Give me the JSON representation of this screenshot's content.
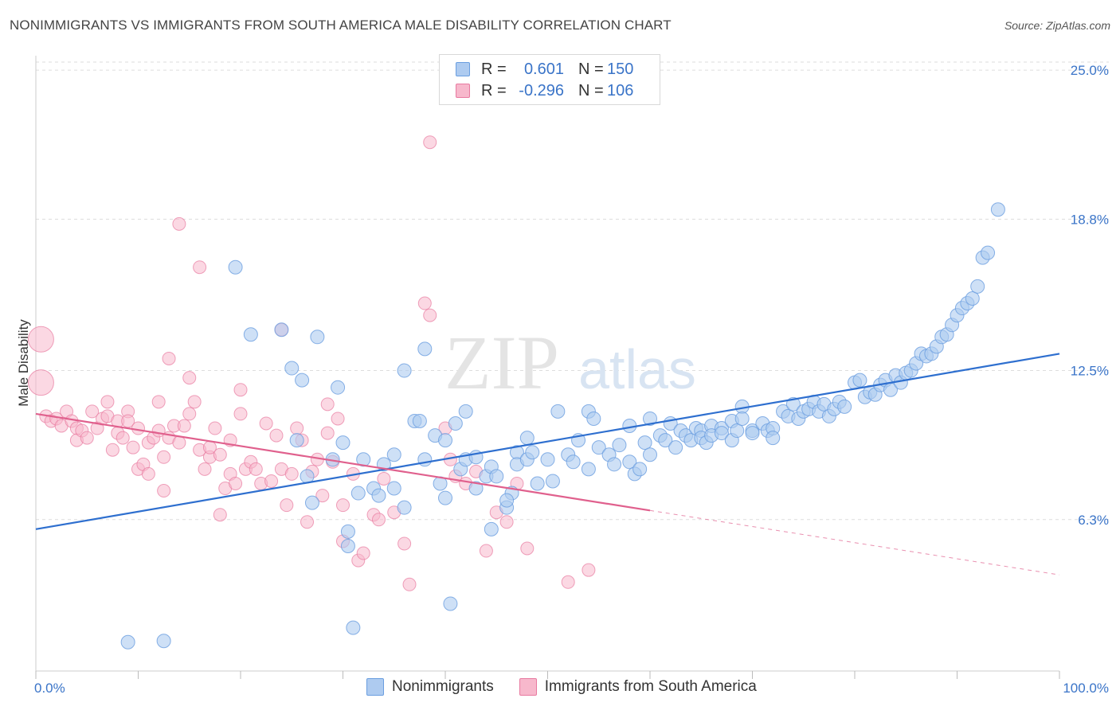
{
  "header": {
    "title": "NONIMMIGRANTS VS IMMIGRANTS FROM SOUTH AMERICA MALE DISABILITY CORRELATION CHART",
    "source": "Source: ZipAtlas.com"
  },
  "watermark": {
    "zip": "ZIP",
    "atlas": "atlas"
  },
  "legend": {
    "r_label": "R =",
    "n_label": "N =",
    "series": [
      {
        "name": "Nonimmigrants",
        "r": "0.601",
        "n": "150",
        "color": "#6a9ee0",
        "fill": "#aecbf0"
      },
      {
        "name": "Immigrants from South America",
        "r": "-0.296",
        "n": "106",
        "color": "#e87aa0",
        "fill": "#f7b8cc"
      }
    ]
  },
  "colors": {
    "blue_line": "#2e6fcf",
    "pink_line": "#e0608d",
    "value_text": "#3a74c8",
    "grid": "#dddddd"
  },
  "chart_data": {
    "type": "scatter",
    "title": "NONIMMIGRANTS VS IMMIGRANTS FROM SOUTH AMERICA MALE DISABILITY CORRELATION CHART",
    "xlabel": "",
    "ylabel": "Male Disability",
    "xlim": [
      0,
      100
    ],
    "ylim": [
      0,
      25.6
    ],
    "x_tick_labels": [
      "0.0%",
      "100.0%"
    ],
    "y_ticks": [
      6.3,
      12.5,
      18.8,
      25.0
    ],
    "y_tick_labels": [
      "6.3%",
      "12.5%",
      "18.8%",
      "25.0%"
    ],
    "grid": true,
    "legend_position": "top-center",
    "series": [
      {
        "name": "Nonimmigrants",
        "trend": {
          "x": [
            0,
            100
          ],
          "y": [
            5.9,
            13.2
          ]
        },
        "points": [
          [
            9,
            1.2
          ],
          [
            12.5,
            1.25
          ],
          [
            19.5,
            16.8
          ],
          [
            21,
            14.0
          ],
          [
            24,
            14.2
          ],
          [
            25,
            12.6
          ],
          [
            25.5,
            9.6
          ],
          [
            26,
            12.1
          ],
          [
            26.5,
            8.1
          ],
          [
            27,
            7.0
          ],
          [
            27.5,
            13.9
          ],
          [
            29,
            8.8
          ],
          [
            29.5,
            11.8
          ],
          [
            30,
            9.5
          ],
          [
            30.5,
            5.8
          ],
          [
            30.5,
            5.2
          ],
          [
            31,
            1.8
          ],
          [
            31.5,
            7.4
          ],
          [
            32,
            8.8
          ],
          [
            33,
            7.6
          ],
          [
            33.5,
            7.3
          ],
          [
            34,
            8.6
          ],
          [
            35,
            7.6
          ],
          [
            35,
            9.0
          ],
          [
            36,
            6.8
          ],
          [
            36,
            12.5
          ],
          [
            37,
            10.4
          ],
          [
            37.5,
            10.4
          ],
          [
            38,
            13.4
          ],
          [
            38,
            8.8
          ],
          [
            39,
            9.8
          ],
          [
            39.5,
            7.8
          ],
          [
            40,
            9.6
          ],
          [
            40,
            7.2
          ],
          [
            40.5,
            2.8
          ],
          [
            41,
            10.3
          ],
          [
            41.5,
            8.4
          ],
          [
            42,
            8.8
          ],
          [
            42,
            10.8
          ],
          [
            43,
            8.9
          ],
          [
            43,
            7.6
          ],
          [
            44,
            8.1
          ],
          [
            44.5,
            8.5
          ],
          [
            44.5,
            5.9
          ],
          [
            45,
            8.1
          ],
          [
            46,
            6.8
          ],
          [
            46.5,
            7.4
          ],
          [
            46,
            7.1
          ],
          [
            47,
            9.1
          ],
          [
            47,
            8.6
          ],
          [
            48,
            9.7
          ],
          [
            48,
            8.8
          ],
          [
            48.5,
            9.1
          ],
          [
            49,
            7.8
          ],
          [
            50,
            8.8
          ],
          [
            50.5,
            7.9
          ],
          [
            51,
            10.8
          ],
          [
            52,
            9.0
          ],
          [
            52.5,
            8.7
          ],
          [
            53,
            9.6
          ],
          [
            54,
            10.8
          ],
          [
            54,
            8.4
          ],
          [
            54.5,
            10.5
          ],
          [
            55,
            9.3
          ],
          [
            56,
            9.0
          ],
          [
            56.5,
            8.6
          ],
          [
            57,
            9.4
          ],
          [
            58,
            8.7
          ],
          [
            58,
            10.2
          ],
          [
            58.5,
            8.2
          ],
          [
            59,
            8.4
          ],
          [
            59.5,
            9.5
          ],
          [
            60,
            10.5
          ],
          [
            60,
            9.0
          ],
          [
            61,
            9.8
          ],
          [
            61.5,
            9.6
          ],
          [
            62,
            10.3
          ],
          [
            62.5,
            9.3
          ],
          [
            63,
            10.0
          ],
          [
            63.5,
            9.8
          ],
          [
            64,
            9.6
          ],
          [
            64.5,
            10.1
          ],
          [
            65,
            10.0
          ],
          [
            65,
            9.7
          ],
          [
            65.5,
            9.5
          ],
          [
            66,
            10.2
          ],
          [
            66,
            9.8
          ],
          [
            67,
            10.1
          ],
          [
            67,
            9.9
          ],
          [
            68,
            10.4
          ],
          [
            68,
            9.6
          ],
          [
            68.5,
            10.0
          ],
          [
            69,
            11.0
          ],
          [
            69,
            10.5
          ],
          [
            70,
            10.0
          ],
          [
            70,
            9.9
          ],
          [
            71,
            10.3
          ],
          [
            71.5,
            10.0
          ],
          [
            72,
            10.1
          ],
          [
            72,
            9.7
          ],
          [
            73,
            10.8
          ],
          [
            73.5,
            10.6
          ],
          [
            74,
            11.1
          ],
          [
            74.5,
            10.5
          ],
          [
            75,
            10.8
          ],
          [
            75.5,
            10.9
          ],
          [
            76,
            11.2
          ],
          [
            76.5,
            10.8
          ],
          [
            77,
            11.1
          ],
          [
            77.5,
            10.6
          ],
          [
            78,
            10.9
          ],
          [
            78.5,
            11.2
          ],
          [
            79,
            11.0
          ],
          [
            80,
            12.0
          ],
          [
            80.5,
            12.1
          ],
          [
            81,
            11.4
          ],
          [
            81.5,
            11.6
          ],
          [
            82,
            11.5
          ],
          [
            82.5,
            11.9
          ],
          [
            83,
            12.1
          ],
          [
            83.5,
            11.7
          ],
          [
            84,
            12.3
          ],
          [
            84.5,
            12.0
          ],
          [
            85,
            12.4
          ],
          [
            85.5,
            12.5
          ],
          [
            86,
            12.8
          ],
          [
            86.5,
            13.2
          ],
          [
            87,
            13.1
          ],
          [
            87.5,
            13.2
          ],
          [
            88,
            13.5
          ],
          [
            88.5,
            13.9
          ],
          [
            89,
            14.0
          ],
          [
            89.5,
            14.4
          ],
          [
            90,
            14.8
          ],
          [
            90.5,
            15.1
          ],
          [
            91,
            15.3
          ],
          [
            91.5,
            15.5
          ],
          [
            92,
            16.0
          ],
          [
            92.5,
            17.2
          ],
          [
            93,
            17.4
          ],
          [
            94,
            19.2
          ]
        ]
      },
      {
        "name": "Immigrants from South America",
        "trend": {
          "x": [
            0,
            100
          ],
          "y": [
            10.7,
            4.0
          ]
        },
        "trend_solid_until_x": 60,
        "points": [
          [
            0.5,
            13.8
          ],
          [
            0.5,
            12.0
          ],
          [
            1,
            10.6
          ],
          [
            1.5,
            10.4
          ],
          [
            2,
            10.5
          ],
          [
            2.5,
            10.2
          ],
          [
            3,
            10.8
          ],
          [
            3.5,
            10.4
          ],
          [
            4,
            10.1
          ],
          [
            4,
            9.6
          ],
          [
            4.5,
            10.0
          ],
          [
            5,
            9.7
          ],
          [
            5.5,
            10.8
          ],
          [
            6,
            10.1
          ],
          [
            6.5,
            10.5
          ],
          [
            7,
            10.6
          ],
          [
            7,
            11.2
          ],
          [
            7.5,
            9.2
          ],
          [
            8,
            10.4
          ],
          [
            8,
            9.9
          ],
          [
            8.5,
            9.7
          ],
          [
            9,
            10.8
          ],
          [
            9,
            10.4
          ],
          [
            9.5,
            9.3
          ],
          [
            10,
            10.1
          ],
          [
            10,
            8.4
          ],
          [
            10.5,
            8.6
          ],
          [
            11,
            8.2
          ],
          [
            11,
            9.5
          ],
          [
            11.5,
            9.7
          ],
          [
            12,
            10.0
          ],
          [
            12,
            11.2
          ],
          [
            12.5,
            8.9
          ],
          [
            12.5,
            7.5
          ],
          [
            13,
            9.7
          ],
          [
            13,
            13.0
          ],
          [
            13.5,
            10.2
          ],
          [
            14,
            9.5
          ],
          [
            14,
            18.6
          ],
          [
            14.5,
            10.2
          ],
          [
            15,
            10.7
          ],
          [
            15,
            12.2
          ],
          [
            15.5,
            11.2
          ],
          [
            16,
            9.2
          ],
          [
            16,
            16.8
          ],
          [
            16.5,
            8.4
          ],
          [
            17,
            8.9
          ],
          [
            17,
            9.3
          ],
          [
            17.5,
            10.1
          ],
          [
            18,
            9.0
          ],
          [
            18,
            6.5
          ],
          [
            18.5,
            7.6
          ],
          [
            19,
            8.2
          ],
          [
            19,
            9.6
          ],
          [
            19.5,
            7.8
          ],
          [
            20,
            10.7
          ],
          [
            20,
            11.7
          ],
          [
            20.5,
            8.4
          ],
          [
            21,
            8.7
          ],
          [
            21.5,
            8.4
          ],
          [
            22,
            7.8
          ],
          [
            22.5,
            10.3
          ],
          [
            23,
            7.9
          ],
          [
            23.5,
            9.8
          ],
          [
            24,
            8.4
          ],
          [
            24,
            14.2
          ],
          [
            24.5,
            6.9
          ],
          [
            25,
            8.2
          ],
          [
            25.5,
            10.1
          ],
          [
            26,
            9.6
          ],
          [
            26.5,
            6.2
          ],
          [
            27,
            8.3
          ],
          [
            27.5,
            8.8
          ],
          [
            28,
            7.3
          ],
          [
            28.5,
            9.9
          ],
          [
            28.5,
            11.1
          ],
          [
            29,
            8.7
          ],
          [
            29.5,
            10.5
          ],
          [
            30,
            6.9
          ],
          [
            30,
            5.4
          ],
          [
            31,
            8.2
          ],
          [
            31.5,
            4.6
          ],
          [
            32,
            4.9
          ],
          [
            33,
            6.5
          ],
          [
            33.5,
            6.3
          ],
          [
            34,
            8.0
          ],
          [
            35,
            6.6
          ],
          [
            36,
            5.3
          ],
          [
            36.5,
            3.6
          ],
          [
            38,
            15.3
          ],
          [
            38.5,
            14.8
          ],
          [
            38.5,
            22.0
          ],
          [
            40,
            10.1
          ],
          [
            40.5,
            8.8
          ],
          [
            41,
            8.1
          ],
          [
            42,
            7.8
          ],
          [
            43,
            8.3
          ],
          [
            44,
            5.0
          ],
          [
            45,
            6.6
          ],
          [
            46,
            6.2
          ],
          [
            47,
            7.8
          ],
          [
            48,
            5.1
          ],
          [
            52,
            3.7
          ],
          [
            54,
            4.2
          ]
        ]
      }
    ]
  }
}
